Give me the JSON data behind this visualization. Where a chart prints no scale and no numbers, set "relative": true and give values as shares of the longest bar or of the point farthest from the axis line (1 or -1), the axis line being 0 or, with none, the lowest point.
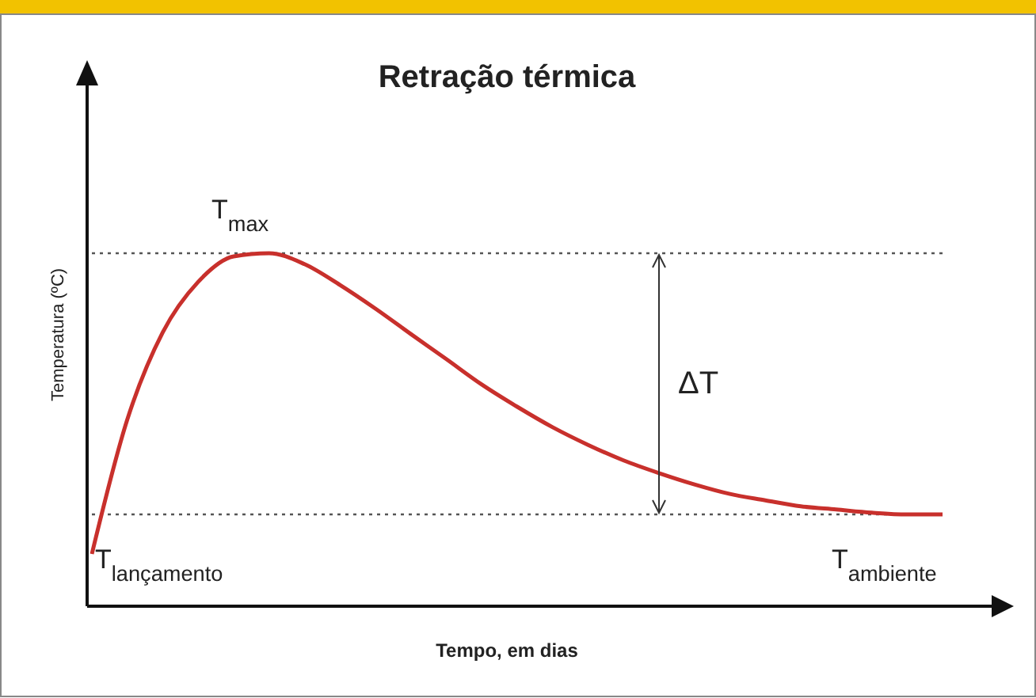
{
  "chart_data": {
    "type": "line",
    "title": "Retração térmica",
    "xlabel": "Tempo, em dias",
    "ylabel": "Temperatura (ºC)",
    "relative": true,
    "categories": [
      null,
      null,
      null,
      null,
      null,
      null,
      null,
      null,
      null,
      null,
      null,
      null,
      null,
      null,
      null,
      null,
      null,
      null,
      null,
      null,
      null,
      null,
      null,
      null,
      null
    ],
    "series": [
      {
        "color": "#c8302c",
        "values": [
          0.148,
          0.529,
          0.776,
          0.919,
          0.991,
          1.0,
          0.969,
          0.91,
          0.843,
          0.771,
          0.7,
          0.628,
          0.565,
          0.507,
          0.457,
          0.413,
          0.377,
          0.345,
          0.318,
          0.3,
          0.283,
          0.274,
          0.265,
          0.26,
          0.26
        ]
      }
    ],
    "ref_lines": [
      {
        "axis": "y",
        "value": 1,
        "line_style": "dotted",
        "color": "#555555"
      },
      {
        "axis": "y",
        "value": 0.26,
        "line_style": "dotted",
        "color": "#555555"
      }
    ],
    "annotations": [
      "T$_{max}$",
      "ΔT",
      "T$_{lançamento}$",
      "T$_{ambiente}$"
    ],
    "line_style": "solid",
    "grid": false
  }
}
